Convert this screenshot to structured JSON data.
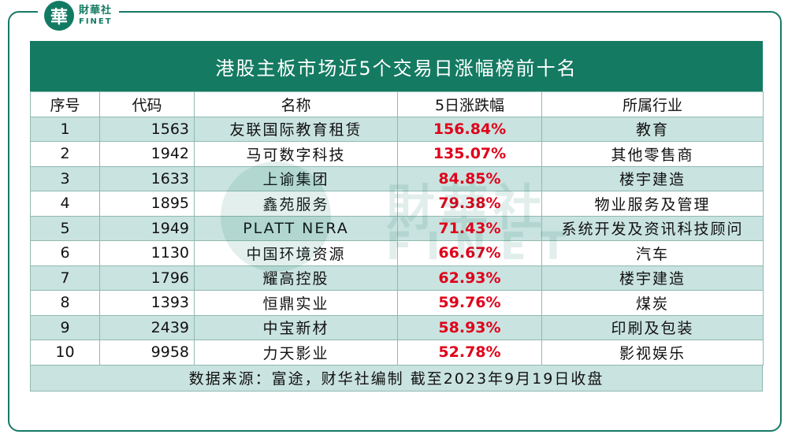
{
  "brand": {
    "logo_char": "華",
    "name_cn": "財華社",
    "name_en": "FINET"
  },
  "watermark": {
    "name_cn": "財華社",
    "name_en": "FINET"
  },
  "chart_data": {
    "type": "table",
    "title": "港股主板市场近5个交易日涨幅榜前十名",
    "columns": [
      "序号",
      "代码",
      "名称",
      "5日涨跌幅",
      "所属行业"
    ],
    "rows": [
      {
        "rank": "1",
        "code": "1563",
        "name": "友联国际教育租赁",
        "change": "156.84%",
        "industry": "教育"
      },
      {
        "rank": "2",
        "code": "1942",
        "name": "马可数字科技",
        "change": "135.07%",
        "industry": "其他零售商"
      },
      {
        "rank": "3",
        "code": "1633",
        "name": "上谕集团",
        "change": "84.85%",
        "industry": "楼宇建造"
      },
      {
        "rank": "4",
        "code": "1895",
        "name": "鑫苑服务",
        "change": "79.38%",
        "industry": "物业服务及管理"
      },
      {
        "rank": "5",
        "code": "1949",
        "name": "PLATT NERA",
        "change": "71.43%",
        "industry": "系统开发及资讯科技顾问"
      },
      {
        "rank": "6",
        "code": "1130",
        "name": "中国环境资源",
        "change": "66.67%",
        "industry": "汽车"
      },
      {
        "rank": "7",
        "code": "1796",
        "name": "耀高控股",
        "change": "62.93%",
        "industry": "楼宇建造"
      },
      {
        "rank": "8",
        "code": "1393",
        "name": "恒鼎实业",
        "change": "59.76%",
        "industry": "煤炭"
      },
      {
        "rank": "9",
        "code": "2439",
        "name": "中宝新材",
        "change": "58.93%",
        "industry": "印刷及包装"
      },
      {
        "rank": "10",
        "code": "9958",
        "name": "力天影业",
        "change": "52.78%",
        "industry": "影视娱乐"
      }
    ],
    "source": "数据来源：富途，财华社编制 截至2023年9月19日收盘"
  },
  "colors": {
    "header_bg": "#147a62",
    "row_alt_bg": "#c9e3e0",
    "change_text": "#e0001a"
  }
}
